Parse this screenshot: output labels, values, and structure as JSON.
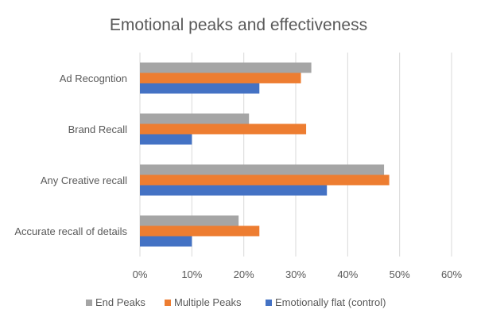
{
  "chart_data": {
    "type": "bar",
    "orientation": "horizontal",
    "title": "Emotional peaks and effectiveness",
    "categories": [
      "Ad Recogntion",
      "Brand Recall",
      "Any Creative recall",
      "Accurate recall of details"
    ],
    "series": [
      {
        "name": "End Peaks",
        "color": "#a5a5a5",
        "values": [
          0.33,
          0.21,
          0.47,
          0.19
        ]
      },
      {
        "name": "Multiple Peaks",
        "color": "#ed7d31",
        "values": [
          0.31,
          0.32,
          0.48,
          0.23
        ]
      },
      {
        "name": "Emotionally flat (control)",
        "color": "#4472c4",
        "values": [
          0.23,
          0.1,
          0.36,
          0.1
        ]
      }
    ],
    "xlim": [
      0,
      0.6
    ],
    "xticks": [
      0,
      0.1,
      0.2,
      0.3,
      0.4,
      0.5,
      0.6
    ],
    "xtick_labels": [
      "0%",
      "10%",
      "20%",
      "30%",
      "40%",
      "50%",
      "60%"
    ],
    "grid": true,
    "legend_position": "bottom",
    "xlabel": "",
    "ylabel": ""
  }
}
